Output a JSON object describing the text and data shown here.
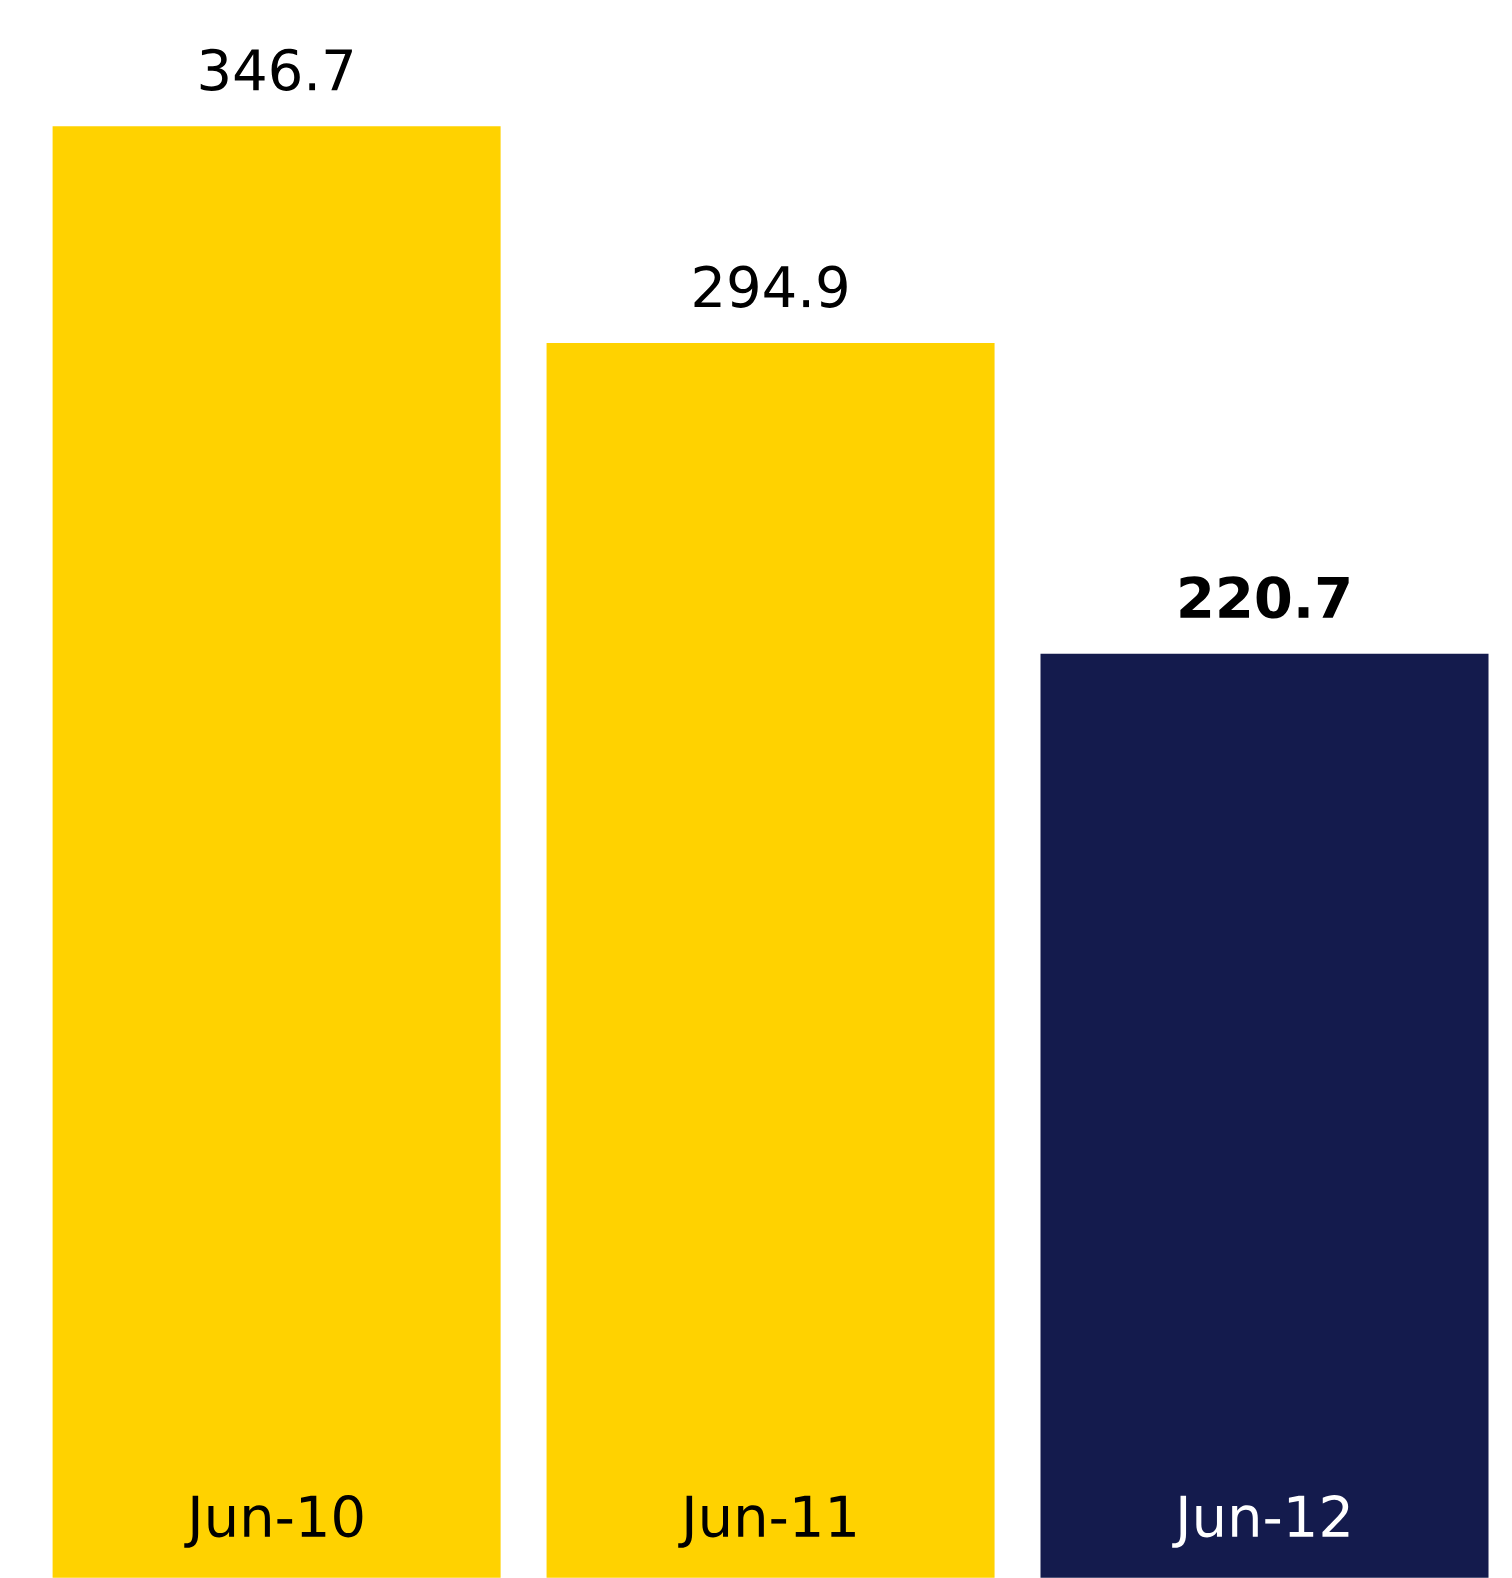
{
  "chart_data": {
    "type": "bar",
    "categories": [
      "Jun-10",
      "Jun-11",
      "Jun-12"
    ],
    "values": [
      346.7,
      294.9,
      220.7
    ],
    "colors": [
      "#ffd200",
      "#ffd200",
      "#141b4d"
    ],
    "value_labels": [
      "346.7",
      "294.9",
      "**220.7**"
    ]
  }
}
